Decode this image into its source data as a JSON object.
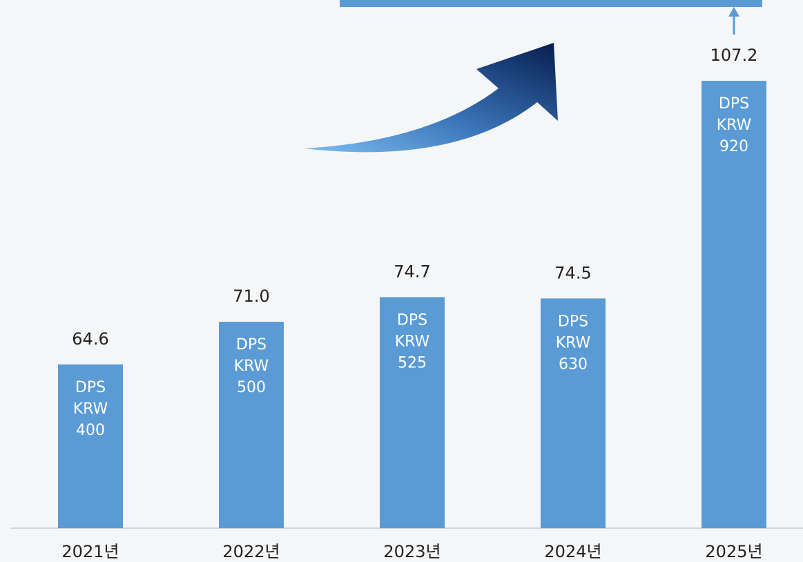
{
  "chart_data": {
    "type": "bar",
    "categories": [
      "2021년",
      "2022년",
      "2023년",
      "2024년",
      "2025년"
    ],
    "values": [
      64.6,
      71.0,
      74.7,
      74.5,
      107.2
    ],
    "value_labels": [
      "64.6",
      "71.0",
      "74.7",
      "74.5",
      "107.2"
    ],
    "bar_labels": [
      [
        "DPS",
        "KRW",
        "400"
      ],
      [
        "DPS",
        "KRW",
        "500"
      ],
      [
        "DPS",
        "KRW",
        "525"
      ],
      [
        "DPS",
        "KRW",
        "630"
      ],
      [
        "DPS",
        "KRW",
        "920"
      ]
    ],
    "color": "#5b9bd5",
    "ylim": [
      40,
      110
    ]
  }
}
